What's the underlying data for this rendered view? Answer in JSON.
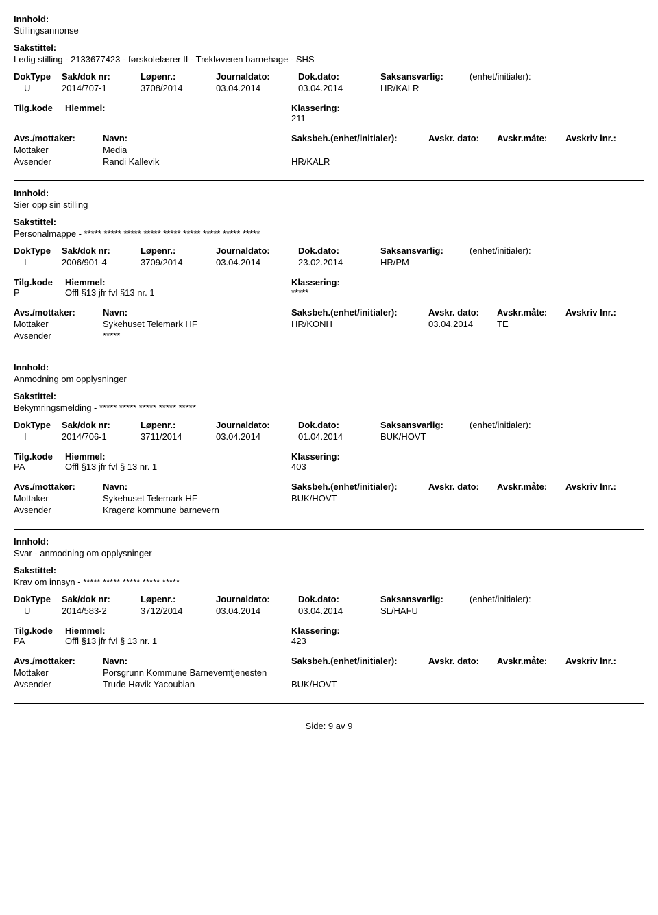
{
  "labels": {
    "innhold": "Innhold:",
    "sakstittel": "Sakstittel:",
    "doktype": "DokType",
    "sakdoknr": "Sak/dok nr:",
    "lopenr": "Løpenr.:",
    "journaldato": "Journaldato:",
    "dokdato": "Dok.dato:",
    "saksansvarlig": "Saksansvarlig:",
    "enhet": "(enhet/initialer):",
    "tilgkode": "Tilg.kode",
    "hjemmel": "Hiemmel:",
    "klassering": "Klassering:",
    "avsmottaker": "Avs./mottaker:",
    "navn": "Navn:",
    "saksbeh": "Saksbeh.(enhet/initialer):",
    "avskrdato": "Avskr. dato:",
    "avskrmaate": "Avskr.måte:",
    "avskrlnr": "Avskriv lnr.:",
    "mottaker": "Mottaker",
    "avsender": "Avsender"
  },
  "entries": [
    {
      "innhold": "Stillingsannonse",
      "sakstittel": "Ledig stilling - 2133677423 - førskolelærer II - Trekløveren barnehage - SHS",
      "doktype": "U",
      "sakdoknr": "2014/707-1",
      "lopenr": "3708/2014",
      "journaldato": "03.04.2014",
      "dokdato": "03.04.2014",
      "saksansvarlig": "HR/KALR",
      "tilgkode": "",
      "hjemmel": "",
      "klassering": "211",
      "parties": [
        {
          "role": "Mottaker",
          "navn": "Media",
          "saksbeh": "",
          "avskrdato": "",
          "avskrmaate": ""
        },
        {
          "role": "Avsender",
          "navn": "Randi Kallevik",
          "saksbeh": "HR/KALR",
          "avskrdato": "",
          "avskrmaate": ""
        }
      ]
    },
    {
      "innhold": "Sier opp sin stilling",
      "sakstittel": "Personalmappe - ***** ***** ***** ***** ***** ***** ***** ***** *****",
      "doktype": "I",
      "sakdoknr": "2006/901-4",
      "lopenr": "3709/2014",
      "journaldato": "03.04.2014",
      "dokdato": "23.02.2014",
      "saksansvarlig": "HR/PM",
      "tilgkode": "P",
      "hjemmel": "Offl §13 jfr fvl §13 nr. 1",
      "klassering": "*****",
      "parties": [
        {
          "role": "Mottaker",
          "navn": "Sykehuset Telemark HF",
          "saksbeh": "HR/KONH",
          "avskrdato": "03.04.2014",
          "avskrmaate": "TE"
        },
        {
          "role": "Avsender",
          "navn": "*****",
          "saksbeh": "",
          "avskrdato": "",
          "avskrmaate": ""
        }
      ]
    },
    {
      "innhold": "Anmodning om opplysninger",
      "sakstittel": "Bekymringsmelding - ***** ***** ***** ***** *****",
      "doktype": "I",
      "sakdoknr": "2014/706-1",
      "lopenr": "3711/2014",
      "journaldato": "03.04.2014",
      "dokdato": "01.04.2014",
      "saksansvarlig": "BUK/HOVT",
      "tilgkode": "PA",
      "hjemmel": "Offl §13 jfr fvl § 13 nr. 1",
      "klassering": "403",
      "parties": [
        {
          "role": "Mottaker",
          "navn": "Sykehuset Telemark HF",
          "saksbeh": "BUK/HOVT",
          "avskrdato": "",
          "avskrmaate": ""
        },
        {
          "role": "Avsender",
          "navn": "Kragerø kommune barnevern",
          "saksbeh": "",
          "avskrdato": "",
          "avskrmaate": ""
        }
      ]
    },
    {
      "innhold": "Svar - anmodning om opplysninger",
      "sakstittel": "Krav om innsyn - ***** ***** ***** ***** *****",
      "doktype": "U",
      "sakdoknr": "2014/583-2",
      "lopenr": "3712/2014",
      "journaldato": "03.04.2014",
      "dokdato": "03.04.2014",
      "saksansvarlig": "SL/HAFU",
      "tilgkode": "PA",
      "hjemmel": "Offl §13 jfr fvl § 13 nr. 1",
      "klassering": "423",
      "parties": [
        {
          "role": "Mottaker",
          "navn": "Porsgrunn Kommune Barneverntjenesten",
          "saksbeh": "",
          "avskrdato": "",
          "avskrmaate": ""
        },
        {
          "role": "Avsender",
          "navn": "Trude Høvik Yacoubian",
          "saksbeh": "BUK/HOVT",
          "avskrdato": "",
          "avskrmaate": ""
        }
      ]
    }
  ],
  "footer": "Side: 9 av 9"
}
